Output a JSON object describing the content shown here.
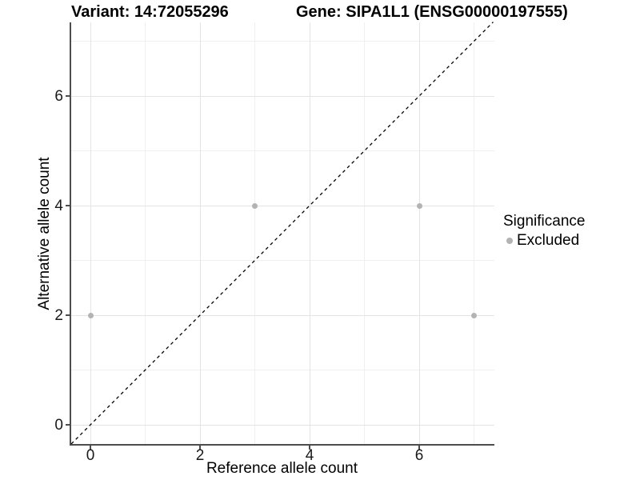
{
  "chart_data": {
    "type": "scatter",
    "title_left": "Variant: 14:72055296",
    "title_right": "Gene: SIPA1L1 (ENSG00000197555)",
    "xlabel": "Reference allele count",
    "ylabel": "Alternative allele count",
    "xlim": [
      -0.35,
      7.35
    ],
    "ylim": [
      -0.35,
      7.35
    ],
    "x_major_ticks": [
      0,
      2,
      4,
      6
    ],
    "x_minor_ticks": [
      1,
      3,
      5,
      7
    ],
    "y_major_ticks": [
      0,
      2,
      4,
      6
    ],
    "y_minor_ticks": [
      1,
      3,
      5,
      7
    ],
    "grid": true,
    "reference_line": {
      "type": "identity",
      "style": "dashed",
      "color": "#000000"
    },
    "series": [
      {
        "name": "Excluded",
        "color": "#b3b3b3",
        "points": [
          [
            0,
            2
          ],
          [
            3,
            4
          ],
          [
            6,
            4
          ],
          [
            7,
            2
          ]
        ]
      }
    ],
    "legend": {
      "title": "Significance",
      "position": "right",
      "items": [
        {
          "label": "Excluded",
          "color": "#b3b3b3"
        }
      ]
    },
    "colors": {
      "axis_line": "#4d4d4d",
      "grid_major": "#e4e4e4",
      "grid_minor": "#f0f0f0",
      "tick_text": "#1a1a1a"
    }
  }
}
